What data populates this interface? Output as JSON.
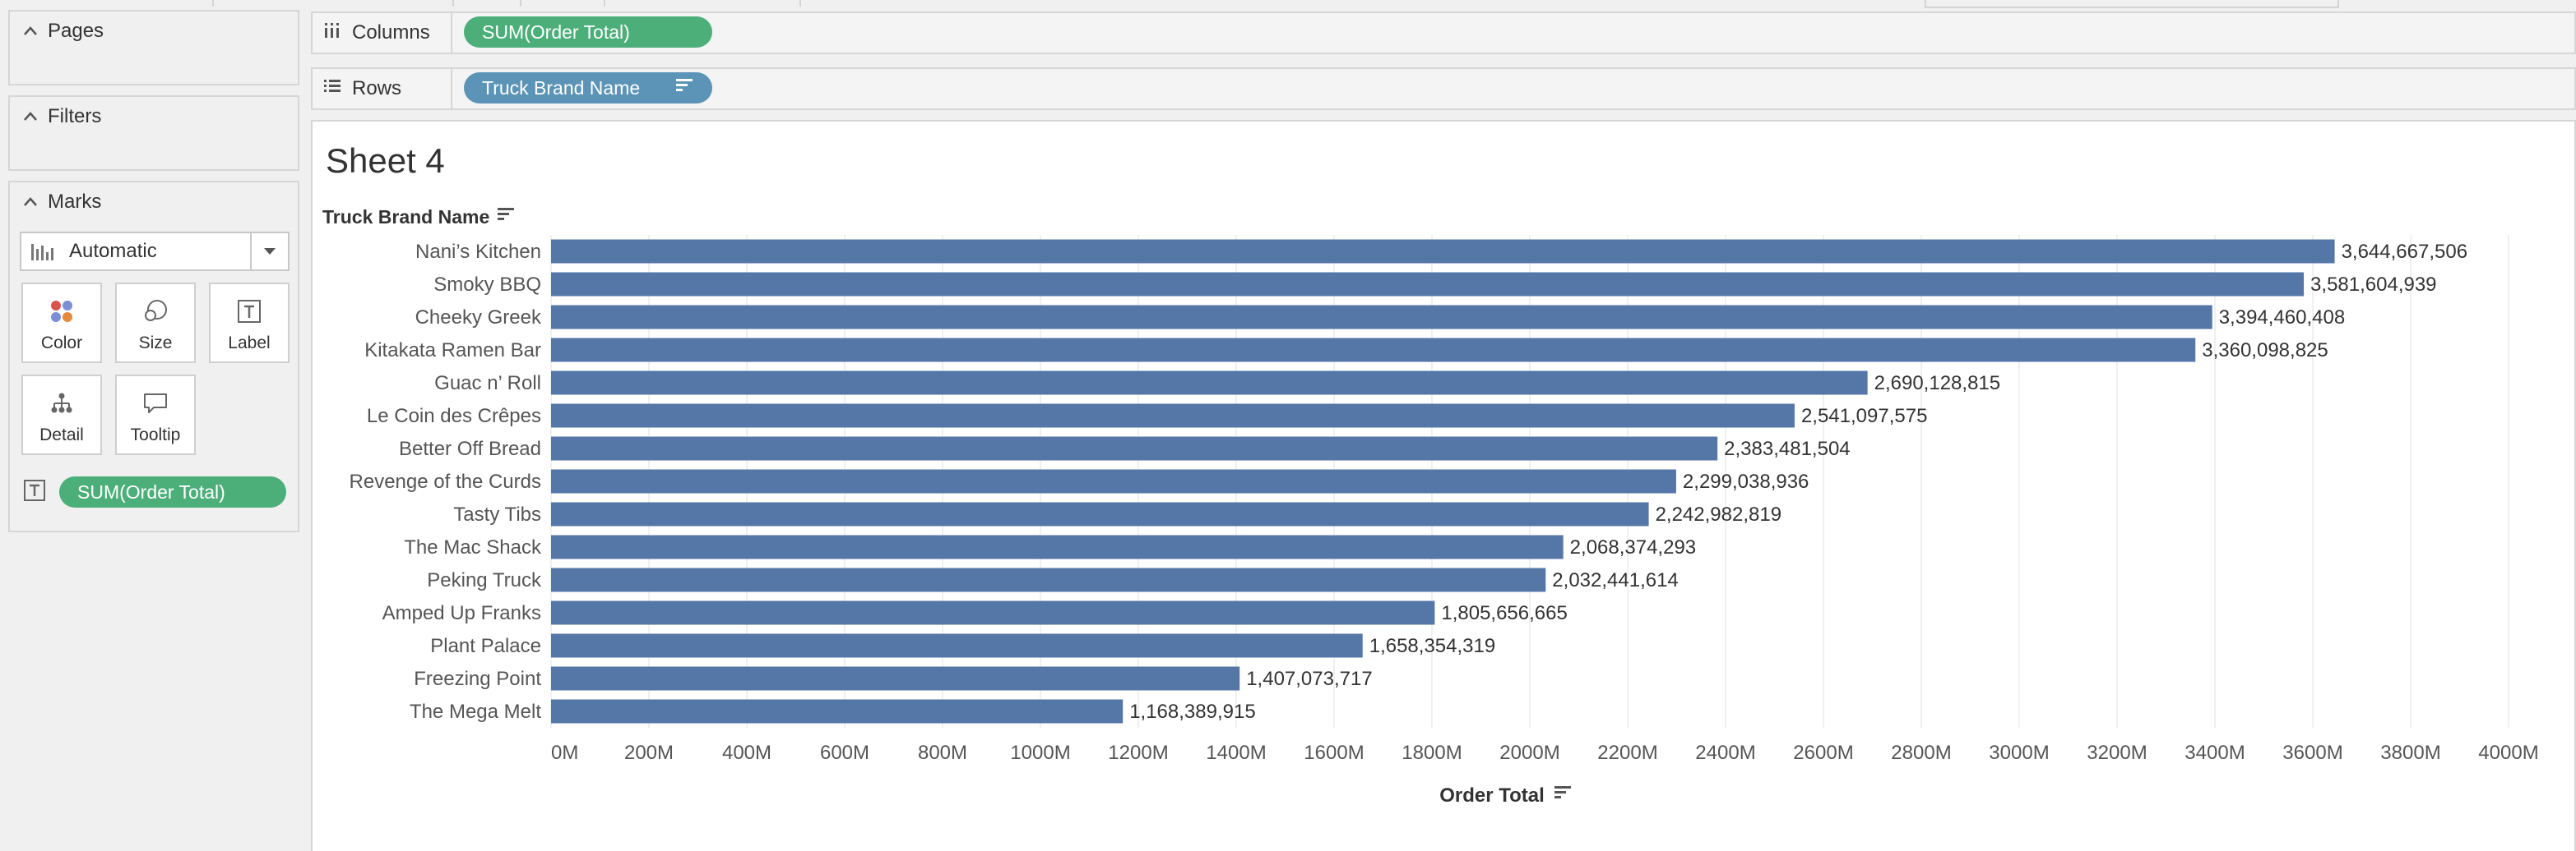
{
  "left_panel": {
    "pages_label": "Pages",
    "filters_label": "Filters",
    "marks_label": "Marks",
    "mark_type": "Automatic",
    "tiles": [
      {
        "label": "Color",
        "icon": "color-dots-icon"
      },
      {
        "label": "Size",
        "icon": "size-circles-icon"
      },
      {
        "label": "Label",
        "icon": "text-label-icon"
      },
      {
        "label": "Detail",
        "icon": "detail-hierarchy-icon"
      },
      {
        "label": "Tooltip",
        "icon": "tooltip-speech-icon"
      }
    ],
    "mark_field": "SUM(Order Total)"
  },
  "shelves": {
    "columns_label": "Columns",
    "columns_pill": "SUM(Order Total)",
    "rows_label": "Rows",
    "rows_pill": "Truck Brand Name"
  },
  "sheet": {
    "title": "Sheet 4",
    "row_header": "Truck Brand Name",
    "axis_title": "Order Total"
  },
  "colors": {
    "bar": "#5577a8",
    "pill_green": "#4caf7a",
    "pill_blue": "#5b94b6"
  },
  "chart_data": {
    "type": "bar",
    "orientation": "horizontal",
    "categories": [
      "Nani’s Kitchen",
      "Smoky BBQ",
      "Cheeky Greek",
      "Kitakata Ramen Bar",
      "Guac n’ Roll",
      "Le Coin des Crêpes",
      "Better Off Bread",
      "Revenge of the Curds",
      "Tasty Tibs",
      "The Mac Shack",
      "Peking Truck",
      "Amped Up Franks",
      "Plant Palace",
      "Freezing Point",
      "The Mega Melt"
    ],
    "values": [
      3644667506,
      3581604939,
      3394460408,
      3360098825,
      2690128815,
      2541097575,
      2383481504,
      2299038936,
      2242982819,
      2068374293,
      2032441614,
      1805656665,
      1658354319,
      1407073717,
      1168389915
    ],
    "value_labels": [
      "3,644,667,506",
      "3,581,604,939",
      "3,394,460,408",
      "3,360,098,825",
      "2,690,128,815",
      "2,541,097,575",
      "2,383,481,504",
      "2,299,038,936",
      "2,242,982,819",
      "2,068,374,293",
      "2,032,441,614",
      "1,805,656,665",
      "1,658,354,319",
      "1,407,073,717",
      "1,168,389,915"
    ],
    "x_ticks": [
      "0M",
      "200M",
      "400M",
      "600M",
      "800M",
      "1000M",
      "1200M",
      "1400M",
      "1600M",
      "1800M",
      "2000M",
      "2200M",
      "2400M",
      "2600M",
      "2800M",
      "3000M",
      "3200M",
      "3400M",
      "3600M",
      "3800M",
      "4000M"
    ],
    "xlim": [
      0,
      4000000000
    ],
    "xlabel": "Order Total",
    "ylabel": "Truck Brand Name",
    "title": "Sheet 4",
    "grid": true
  }
}
